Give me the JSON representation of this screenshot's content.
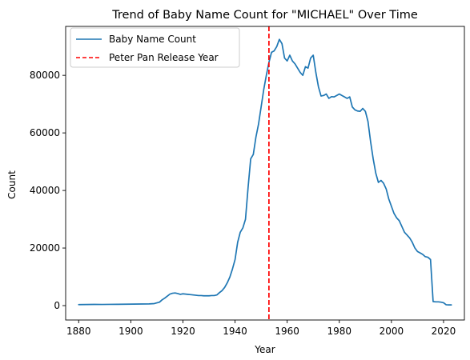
{
  "chart_data": {
    "type": "line",
    "title": "Trend of Baby Name Count for \"MICHAEL\" Over Time",
    "xlabel": "Year",
    "ylabel": "Count",
    "xlim": [
      1875,
      2028
    ],
    "ylim": [
      -5000,
      97000
    ],
    "x_ticks": [
      1880,
      1900,
      1920,
      1940,
      1960,
      1980,
      2000,
      2020
    ],
    "y_ticks": [
      0,
      20000,
      40000,
      60000,
      80000
    ],
    "grid": false,
    "legend_position": "top-left",
    "series": [
      {
        "name": "Baby Name Count",
        "color": "#1f77b4",
        "style": "solid",
        "points": [
          [
            1880,
            350
          ],
          [
            1883,
            380
          ],
          [
            1886,
            420
          ],
          [
            1889,
            400
          ],
          [
            1892,
            430
          ],
          [
            1895,
            450
          ],
          [
            1898,
            480
          ],
          [
            1901,
            520
          ],
          [
            1904,
            560
          ],
          [
            1907,
            600
          ],
          [
            1909,
            700
          ],
          [
            1911,
            1200
          ],
          [
            1912,
            2000
          ],
          [
            1913,
            2600
          ],
          [
            1914,
            3300
          ],
          [
            1915,
            4000
          ],
          [
            1916,
            4300
          ],
          [
            1917,
            4400
          ],
          [
            1918,
            4200
          ],
          [
            1919,
            3900
          ],
          [
            1920,
            4100
          ],
          [
            1921,
            4000
          ],
          [
            1922,
            3900
          ],
          [
            1923,
            3800
          ],
          [
            1924,
            3700
          ],
          [
            1925,
            3600
          ],
          [
            1926,
            3500
          ],
          [
            1927,
            3500
          ],
          [
            1928,
            3400
          ],
          [
            1929,
            3400
          ],
          [
            1930,
            3400
          ],
          [
            1931,
            3500
          ],
          [
            1932,
            3500
          ],
          [
            1933,
            3700
          ],
          [
            1934,
            4500
          ],
          [
            1935,
            5200
          ],
          [
            1936,
            6300
          ],
          [
            1937,
            7900
          ],
          [
            1938,
            9900
          ],
          [
            1939,
            12700
          ],
          [
            1940,
            16000
          ],
          [
            1941,
            22000
          ],
          [
            1942,
            25500
          ],
          [
            1943,
            27000
          ],
          [
            1944,
            30000
          ],
          [
            1945,
            41000
          ],
          [
            1946,
            51000
          ],
          [
            1947,
            52500
          ],
          [
            1948,
            58500
          ],
          [
            1949,
            63000
          ],
          [
            1950,
            69000
          ],
          [
            1951,
            75000
          ],
          [
            1952,
            80000
          ],
          [
            1953,
            84500
          ],
          [
            1954,
            88000
          ],
          [
            1955,
            88500
          ],
          [
            1956,
            90000
          ],
          [
            1957,
            92500
          ],
          [
            1958,
            91000
          ],
          [
            1959,
            86000
          ],
          [
            1960,
            85000
          ],
          [
            1961,
            87000
          ],
          [
            1962,
            85000
          ],
          [
            1963,
            84000
          ],
          [
            1964,
            82500
          ],
          [
            1965,
            81000
          ],
          [
            1966,
            80000
          ],
          [
            1967,
            83000
          ],
          [
            1968,
            82500
          ],
          [
            1969,
            86000
          ],
          [
            1970,
            87000
          ],
          [
            1971,
            81000
          ],
          [
            1972,
            76000
          ],
          [
            1973,
            72800
          ],
          [
            1974,
            73000
          ],
          [
            1975,
            73500
          ],
          [
            1976,
            72000
          ],
          [
            1977,
            72600
          ],
          [
            1978,
            72500
          ],
          [
            1979,
            73000
          ],
          [
            1980,
            73500
          ],
          [
            1981,
            73000
          ],
          [
            1982,
            72500
          ],
          [
            1983,
            72000
          ],
          [
            1984,
            72500
          ],
          [
            1985,
            69000
          ],
          [
            1986,
            68000
          ],
          [
            1987,
            67600
          ],
          [
            1988,
            67500
          ],
          [
            1989,
            68500
          ],
          [
            1990,
            67500
          ],
          [
            1991,
            64000
          ],
          [
            1992,
            57000
          ],
          [
            1993,
            51000
          ],
          [
            1994,
            46000
          ],
          [
            1995,
            42800
          ],
          [
            1996,
            43500
          ],
          [
            1997,
            42500
          ],
          [
            1998,
            40500
          ],
          [
            1999,
            37000
          ],
          [
            2000,
            34500
          ],
          [
            2001,
            32000
          ],
          [
            2002,
            30500
          ],
          [
            2003,
            29500
          ],
          [
            2004,
            27500
          ],
          [
            2005,
            25500
          ],
          [
            2006,
            24500
          ],
          [
            2007,
            23500
          ],
          [
            2008,
            22000
          ],
          [
            2009,
            20000
          ],
          [
            2010,
            18800
          ],
          [
            2011,
            18300
          ],
          [
            2012,
            17800
          ],
          [
            2013,
            17000
          ],
          [
            2014,
            16800
          ],
          [
            2015,
            16000
          ],
          [
            2016,
            1400
          ],
          [
            2017,
            1300
          ],
          [
            2018,
            1300
          ],
          [
            2019,
            1200
          ],
          [
            2020,
            1000
          ],
          [
            2021,
            300
          ],
          [
            2022,
            250
          ],
          [
            2023,
            250
          ]
        ]
      },
      {
        "name": "Peter Pan Release Year",
        "color": "#ff0000",
        "style": "dashed",
        "vline_x": 1953
      }
    ]
  }
}
